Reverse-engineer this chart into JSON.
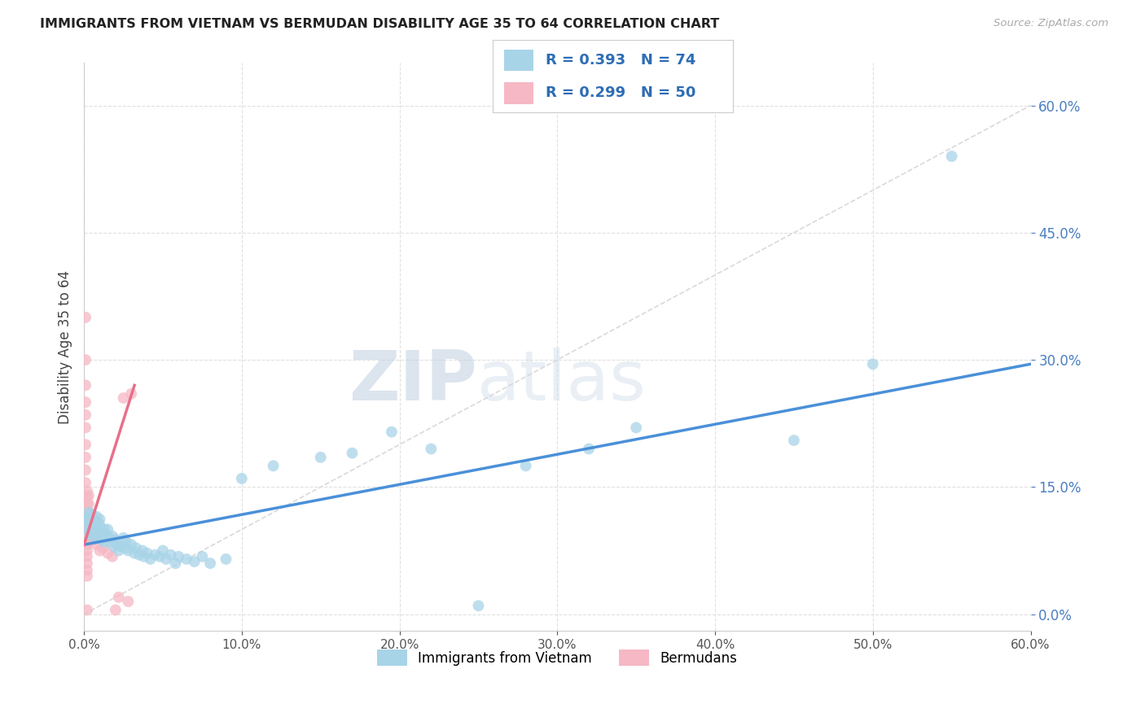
{
  "title": "IMMIGRANTS FROM VIETNAM VS BERMUDAN DISABILITY AGE 35 TO 64 CORRELATION CHART",
  "source": "Source: ZipAtlas.com",
  "ylabel": "Disability Age 35 to 64",
  "watermark_zip": "ZIP",
  "watermark_atlas": "atlas",
  "xlim": [
    0.0,
    0.6
  ],
  "ylim": [
    -0.02,
    0.65
  ],
  "xticks": [
    0.0,
    0.1,
    0.2,
    0.3,
    0.4,
    0.5,
    0.6
  ],
  "yticks": [
    0.0,
    0.15,
    0.3,
    0.45,
    0.6
  ],
  "legend1_label": "Immigrants from Vietnam",
  "legend2_label": "Bermudans",
  "R1": 0.393,
  "N1": 74,
  "R2": 0.299,
  "N2": 50,
  "color_blue": "#a8d4e8",
  "color_pink": "#f5b8c4",
  "line_blue": "#4a90d9",
  "line_pink": "#e8708a",
  "line_diag": "#d0d0d0",
  "blue_x": [
    0.001,
    0.002,
    0.002,
    0.003,
    0.003,
    0.003,
    0.004,
    0.004,
    0.004,
    0.005,
    0.005,
    0.005,
    0.006,
    0.006,
    0.007,
    0.007,
    0.008,
    0.008,
    0.009,
    0.009,
    0.01,
    0.01,
    0.011,
    0.011,
    0.012,
    0.013,
    0.013,
    0.014,
    0.015,
    0.016,
    0.017,
    0.018,
    0.019,
    0.02,
    0.021,
    0.022,
    0.023,
    0.025,
    0.026,
    0.027,
    0.028,
    0.03,
    0.032,
    0.033,
    0.035,
    0.037,
    0.038,
    0.04,
    0.042,
    0.045,
    0.048,
    0.05,
    0.052,
    0.055,
    0.058,
    0.06,
    0.065,
    0.07,
    0.075,
    0.08,
    0.09,
    0.1,
    0.12,
    0.15,
    0.17,
    0.195,
    0.22,
    0.25,
    0.28,
    0.32,
    0.35,
    0.45,
    0.5,
    0.55
  ],
  "blue_y": [
    0.11,
    0.115,
    0.105,
    0.12,
    0.108,
    0.098,
    0.112,
    0.095,
    0.1,
    0.118,
    0.108,
    0.092,
    0.105,
    0.095,
    0.11,
    0.1,
    0.115,
    0.095,
    0.108,
    0.09,
    0.105,
    0.112,
    0.098,
    0.088,
    0.095,
    0.1,
    0.085,
    0.092,
    0.1,
    0.09,
    0.085,
    0.092,
    0.08,
    0.088,
    0.082,
    0.075,
    0.08,
    0.09,
    0.078,
    0.085,
    0.075,
    0.082,
    0.072,
    0.078,
    0.07,
    0.075,
    0.068,
    0.072,
    0.065,
    0.07,
    0.068,
    0.075,
    0.065,
    0.07,
    0.06,
    0.068,
    0.065,
    0.062,
    0.068,
    0.06,
    0.065,
    0.16,
    0.175,
    0.185,
    0.19,
    0.215,
    0.195,
    0.01,
    0.175,
    0.195,
    0.22,
    0.205,
    0.295,
    0.54
  ],
  "pink_x": [
    0.001,
    0.001,
    0.001,
    0.001,
    0.001,
    0.001,
    0.001,
    0.001,
    0.001,
    0.001,
    0.002,
    0.002,
    0.002,
    0.002,
    0.002,
    0.002,
    0.002,
    0.002,
    0.002,
    0.002,
    0.002,
    0.002,
    0.002,
    0.002,
    0.002,
    0.003,
    0.003,
    0.003,
    0.003,
    0.003,
    0.003,
    0.003,
    0.004,
    0.004,
    0.004,
    0.004,
    0.005,
    0.005,
    0.006,
    0.007,
    0.008,
    0.01,
    0.012,
    0.015,
    0.018,
    0.02,
    0.022,
    0.025,
    0.028,
    0.03
  ],
  "pink_y": [
    0.35,
    0.3,
    0.27,
    0.25,
    0.235,
    0.22,
    0.2,
    0.185,
    0.17,
    0.155,
    0.145,
    0.138,
    0.13,
    0.12,
    0.112,
    0.105,
    0.098,
    0.09,
    0.082,
    0.075,
    0.068,
    0.06,
    0.052,
    0.045,
    0.005,
    0.14,
    0.13,
    0.12,
    0.11,
    0.1,
    0.092,
    0.085,
    0.112,
    0.105,
    0.095,
    0.088,
    0.1,
    0.092,
    0.095,
    0.088,
    0.082,
    0.075,
    0.078,
    0.072,
    0.068,
    0.005,
    0.02,
    0.255,
    0.015,
    0.26
  ],
  "blue_line_x": [
    0.0,
    0.6
  ],
  "blue_line_y": [
    0.082,
    0.295
  ],
  "pink_line_x": [
    0.0,
    0.032
  ],
  "pink_line_y": [
    0.082,
    0.27
  ]
}
